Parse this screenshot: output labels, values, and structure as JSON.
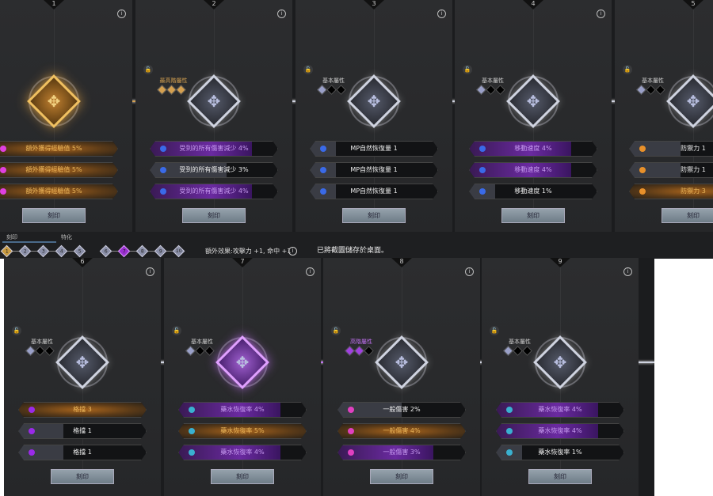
{
  "colors": {
    "gold": "#e9b55a",
    "purple": "#a040e0",
    "silver": "#cfd3e0"
  },
  "tabs": [
    "刻印",
    "特化"
  ],
  "progress": {
    "steps": [
      "1",
      "2",
      "3",
      "4",
      "5",
      "6",
      "7",
      "8",
      "9",
      "10"
    ],
    "current": "7",
    "completed": "1"
  },
  "bonus_text": "額外效果:攻擊力 +1, 命中 +1",
  "toast": "已將截圖儲存於桌面。",
  "engrave_label": "刻印",
  "cards": [
    {
      "num": "1",
      "tier": "",
      "gems": 0,
      "gem_color": "gold",
      "state": "gold",
      "icon_color": "#e040e0",
      "rows": [
        {
          "text": "額外獲得經驗值 5%",
          "style": "gold",
          "fill": 1
        },
        {
          "text": "額外獲得經驗值 5%",
          "style": "gold",
          "fill": 1
        },
        {
          "text": "額外獲得經驗值 5%",
          "style": "gold",
          "fill": 1
        }
      ]
    },
    {
      "num": "2",
      "tier": "最高階屬性",
      "gems": 3,
      "gem_color": "gold",
      "state": "silver",
      "icon_color": "#3a6ae8",
      "rows": [
        {
          "text": "受到的所有傷害減少 4%",
          "style": "purple",
          "fill": 0.8
        },
        {
          "text": "受到的所有傷害減少 3%",
          "style": "grey",
          "fill": 0.6
        },
        {
          "text": "受到的所有傷害減少 4%",
          "style": "purple",
          "fill": 0.8
        }
      ]
    },
    {
      "num": "3",
      "tier": "基本屬性",
      "gems": 1,
      "gem_color": "silver",
      "state": "silver",
      "icon_color": "#3a6ae8",
      "rows": [
        {
          "text": "MP自然恢復量 1",
          "style": "grey",
          "fill": 0.2
        },
        {
          "text": "MP自然恢復量 1",
          "style": "grey",
          "fill": 0.2
        },
        {
          "text": "MP自然恢復量 1",
          "style": "grey",
          "fill": 0.2
        }
      ]
    },
    {
      "num": "4",
      "tier": "基本屬性",
      "gems": 1,
      "gem_color": "silver",
      "state": "silver",
      "icon_color": "#3a6ae8",
      "rows": [
        {
          "text": "移動速度 4%",
          "style": "purple",
          "fill": 0.8
        },
        {
          "text": "移動速度 4%",
          "style": "purple",
          "fill": 0.8
        },
        {
          "text": "移動速度 1%",
          "style": "grey",
          "fill": 0.2
        }
      ]
    },
    {
      "num": "5",
      "tier": "基本屬性",
      "gems": 1,
      "gem_color": "silver",
      "state": "silver",
      "icon_color": "#e8902a",
      "rows": [
        {
          "text": "防禦力 1",
          "style": "grey",
          "fill": 0.4
        },
        {
          "text": "防禦力 1",
          "style": "grey",
          "fill": 0.4
        },
        {
          "text": "防禦力 3",
          "style": "gold",
          "fill": 1
        }
      ]
    },
    {
      "num": "6",
      "tier": "基本屬性",
      "gems": 1,
      "gem_color": "silver",
      "state": "silver",
      "icon_color": "#9a2ae8",
      "rows": [
        {
          "text": "格擋 3",
          "style": "gold",
          "fill": 1
        },
        {
          "text": "格擋 1",
          "style": "grey",
          "fill": 0.35
        },
        {
          "text": "格擋 1",
          "style": "grey",
          "fill": 0.35
        }
      ]
    },
    {
      "num": "7",
      "tier": "基本屬性",
      "gems": 1,
      "gem_color": "silver",
      "state": "purple",
      "icon_color": "#3ab0d0",
      "rows": [
        {
          "text": "藥水恢復率 4%",
          "style": "purple",
          "fill": 0.8
        },
        {
          "text": "藥水恢復率 5%",
          "style": "gold",
          "fill": 1
        },
        {
          "text": "藥水恢復率 4%",
          "style": "purple",
          "fill": 0.8
        }
      ]
    },
    {
      "num": "8",
      "tier": "高階屬性",
      "gems": 2,
      "gem_color": "purple",
      "state": "silver",
      "icon_color": "#e040c0",
      "rows": [
        {
          "text": "一般傷害 2%",
          "style": "grey",
          "fill": 0.5
        },
        {
          "text": "一般傷害 4%",
          "style": "gold",
          "fill": 1
        },
        {
          "text": "一般傷害 3%",
          "style": "purple",
          "fill": 0.75
        }
      ]
    },
    {
      "num": "9",
      "tier": "基本屬性",
      "gems": 1,
      "gem_color": "silver",
      "state": "silver",
      "icon_color": "#3ab0d0",
      "rows": [
        {
          "text": "藥水恢復率 4%",
          "style": "purple",
          "fill": 0.8
        },
        {
          "text": "藥水恢復率 4%",
          "style": "purple",
          "fill": 0.8
        },
        {
          "text": "藥水恢復率 1%",
          "style": "grey",
          "fill": 0.2
        }
      ]
    }
  ]
}
